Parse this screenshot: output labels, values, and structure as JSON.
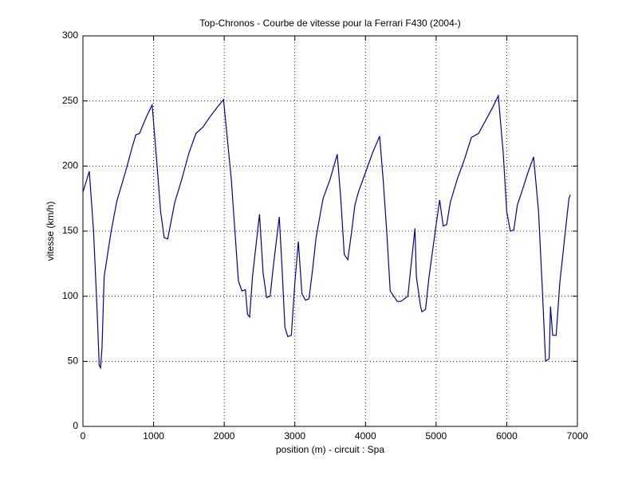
{
  "chart_data": {
    "type": "line",
    "title": "Top-Chronos - Courbe de vitesse pour la Ferrari F430 (2004-)",
    "x_label": "position (m) - circuit : Spa",
    "y_label": "vitesse (km/h)",
    "x": [
      0,
      90,
      150,
      200,
      230,
      250,
      270,
      300,
      400,
      480,
      600,
      700,
      750,
      800,
      900,
      980,
      1050,
      1100,
      1150,
      1200,
      1250,
      1300,
      1400,
      1500,
      1600,
      1700,
      1800,
      1900,
      1990,
      2100,
      2200,
      2250,
      2300,
      2330,
      2360,
      2400,
      2500,
      2550,
      2600,
      2650,
      2700,
      2780,
      2820,
      2860,
      2900,
      2950,
      3000,
      3050,
      3100,
      3150,
      3200,
      3250,
      3300,
      3400,
      3500,
      3600,
      3650,
      3700,
      3750,
      3800,
      3850,
      3900,
      4000,
      4100,
      4200,
      4250,
      4300,
      4350,
      4400,
      4450,
      4500,
      4600,
      4700,
      4720,
      4780,
      4800,
      4850,
      4900,
      5000,
      5050,
      5100,
      5150,
      5200,
      5300,
      5400,
      5500,
      5600,
      5700,
      5800,
      5880,
      5950,
      6000,
      6050,
      6100,
      6150,
      6200,
      6300,
      6380,
      6450,
      6500,
      6550,
      6600,
      6620,
      6650,
      6700,
      6750,
      6800,
      6850,
      6880,
      6900
    ],
    "series": [
      {
        "name": "vitesse",
        "color": "#00009a",
        "values": [
          180,
          196,
          150,
          90,
          47,
          45,
          60,
          115,
          150,
          173,
          195,
          215,
          224,
          225,
          238,
          247,
          200,
          165,
          145,
          144,
          158,
          172,
          190,
          210,
          225,
          230,
          238,
          245,
          251,
          190,
          112,
          104,
          105,
          86,
          84,
          115,
          163,
          118,
          99,
          100,
          125,
          161,
          120,
          76,
          69,
          70,
          110,
          142,
          102,
          97,
          98,
          120,
          145,
          175,
          190,
          209,
          175,
          132,
          128,
          148,
          170,
          180,
          195,
          210,
          223,
          190,
          150,
          104,
          100,
          96,
          96,
          100,
          152,
          115,
          92,
          88,
          90,
          115,
          155,
          174,
          154,
          155,
          172,
          190,
          205,
          222,
          225,
          235,
          245,
          254,
          210,
          165,
          150,
          151,
          170,
          178,
          195,
          207,
          165,
          110,
          50,
          52,
          92,
          70,
          70,
          110,
          135,
          160,
          175,
          178
        ]
      }
    ],
    "xlim": [
      0,
      7000
    ],
    "xticks": [
      0,
      1000,
      2000,
      3000,
      4000,
      5000,
      6000,
      7000
    ],
    "ylim": [
      0,
      300
    ],
    "yticks": [
      0,
      50,
      100,
      150,
      200,
      250,
      300
    ],
    "grid": true
  }
}
